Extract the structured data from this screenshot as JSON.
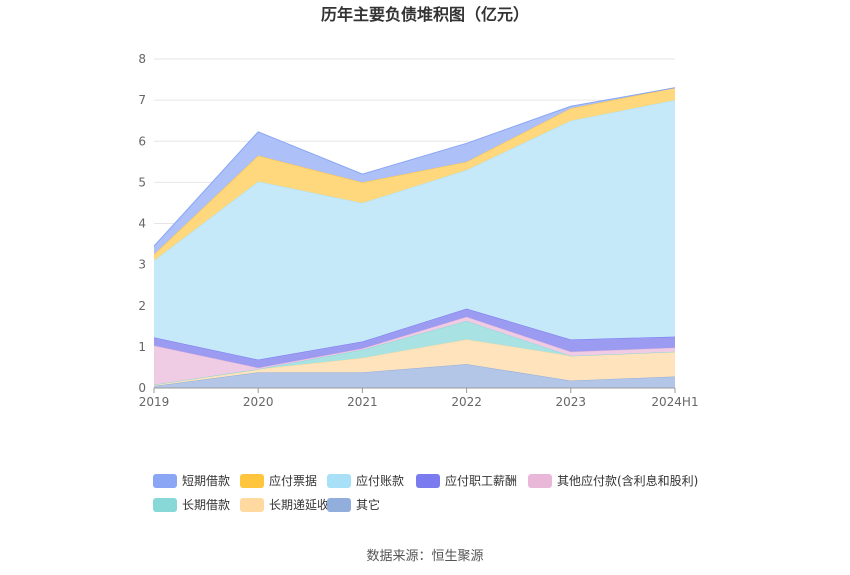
{
  "chart_data": {
    "type": "area",
    "stacked": true,
    "title": "历年主要负债堆积图（亿元）",
    "xlabel": "",
    "ylabel": "",
    "categories": [
      "2019",
      "2020",
      "2021",
      "2022",
      "2023",
      "2024H1"
    ],
    "ylim": [
      0,
      8
    ],
    "yticks": [
      "0",
      "1",
      "2",
      "3",
      "4",
      "5",
      "6",
      "7",
      "8"
    ],
    "grid": true,
    "legend_position": "bottom",
    "series": [
      {
        "name": "其它",
        "color": "#92aedc",
        "fill": "#b3c6e8",
        "values": [
          0.05,
          0.38,
          0.38,
          0.58,
          0.18,
          0.28
        ]
      },
      {
        "name": "长期递延收益",
        "color": "#ffd9a0",
        "fill": "#ffe3bc",
        "values": [
          0.03,
          0.08,
          0.35,
          0.6,
          0.6,
          0.6
        ]
      },
      {
        "name": "长期借款",
        "color": "#88d8d8",
        "fill": "#a9e2e2",
        "values": [
          0.0,
          0.0,
          0.2,
          0.45,
          0.0,
          0.0
        ]
      },
      {
        "name": "其他应付款(含利息和股利)",
        "color": "#e9b8d8",
        "fill": "#f0cce4",
        "values": [
          0.95,
          0.03,
          0.03,
          0.1,
          0.1,
          0.1
        ]
      },
      {
        "name": "应付职工薪酬",
        "color": "#7b7bf0",
        "fill": "#9b9bf2",
        "values": [
          0.2,
          0.2,
          0.17,
          0.2,
          0.3,
          0.27
        ]
      },
      {
        "name": "应付账款",
        "color": "#a8e0f8",
        "fill": "#c6e9fa",
        "values": [
          1.87,
          4.33,
          3.37,
          3.37,
          5.32,
          5.75
        ]
      },
      {
        "name": "应付票据",
        "color": "#ffc53d",
        "fill": "#ffd87d",
        "values": [
          0.15,
          0.63,
          0.5,
          0.2,
          0.3,
          0.3
        ]
      },
      {
        "name": "短期借款",
        "color": "#8aa6f4",
        "fill": "#adc0f7",
        "values": [
          0.2,
          0.58,
          0.2,
          0.45,
          0.05,
          0.0
        ]
      }
    ],
    "legend_order": [
      "短期借款",
      "应付票据",
      "应付账款",
      "应付职工薪酬",
      "其他应付款(含利息和股利)",
      "长期借款",
      "长期递延收益",
      "其它"
    ],
    "source": "数据来源：恒生聚源"
  }
}
